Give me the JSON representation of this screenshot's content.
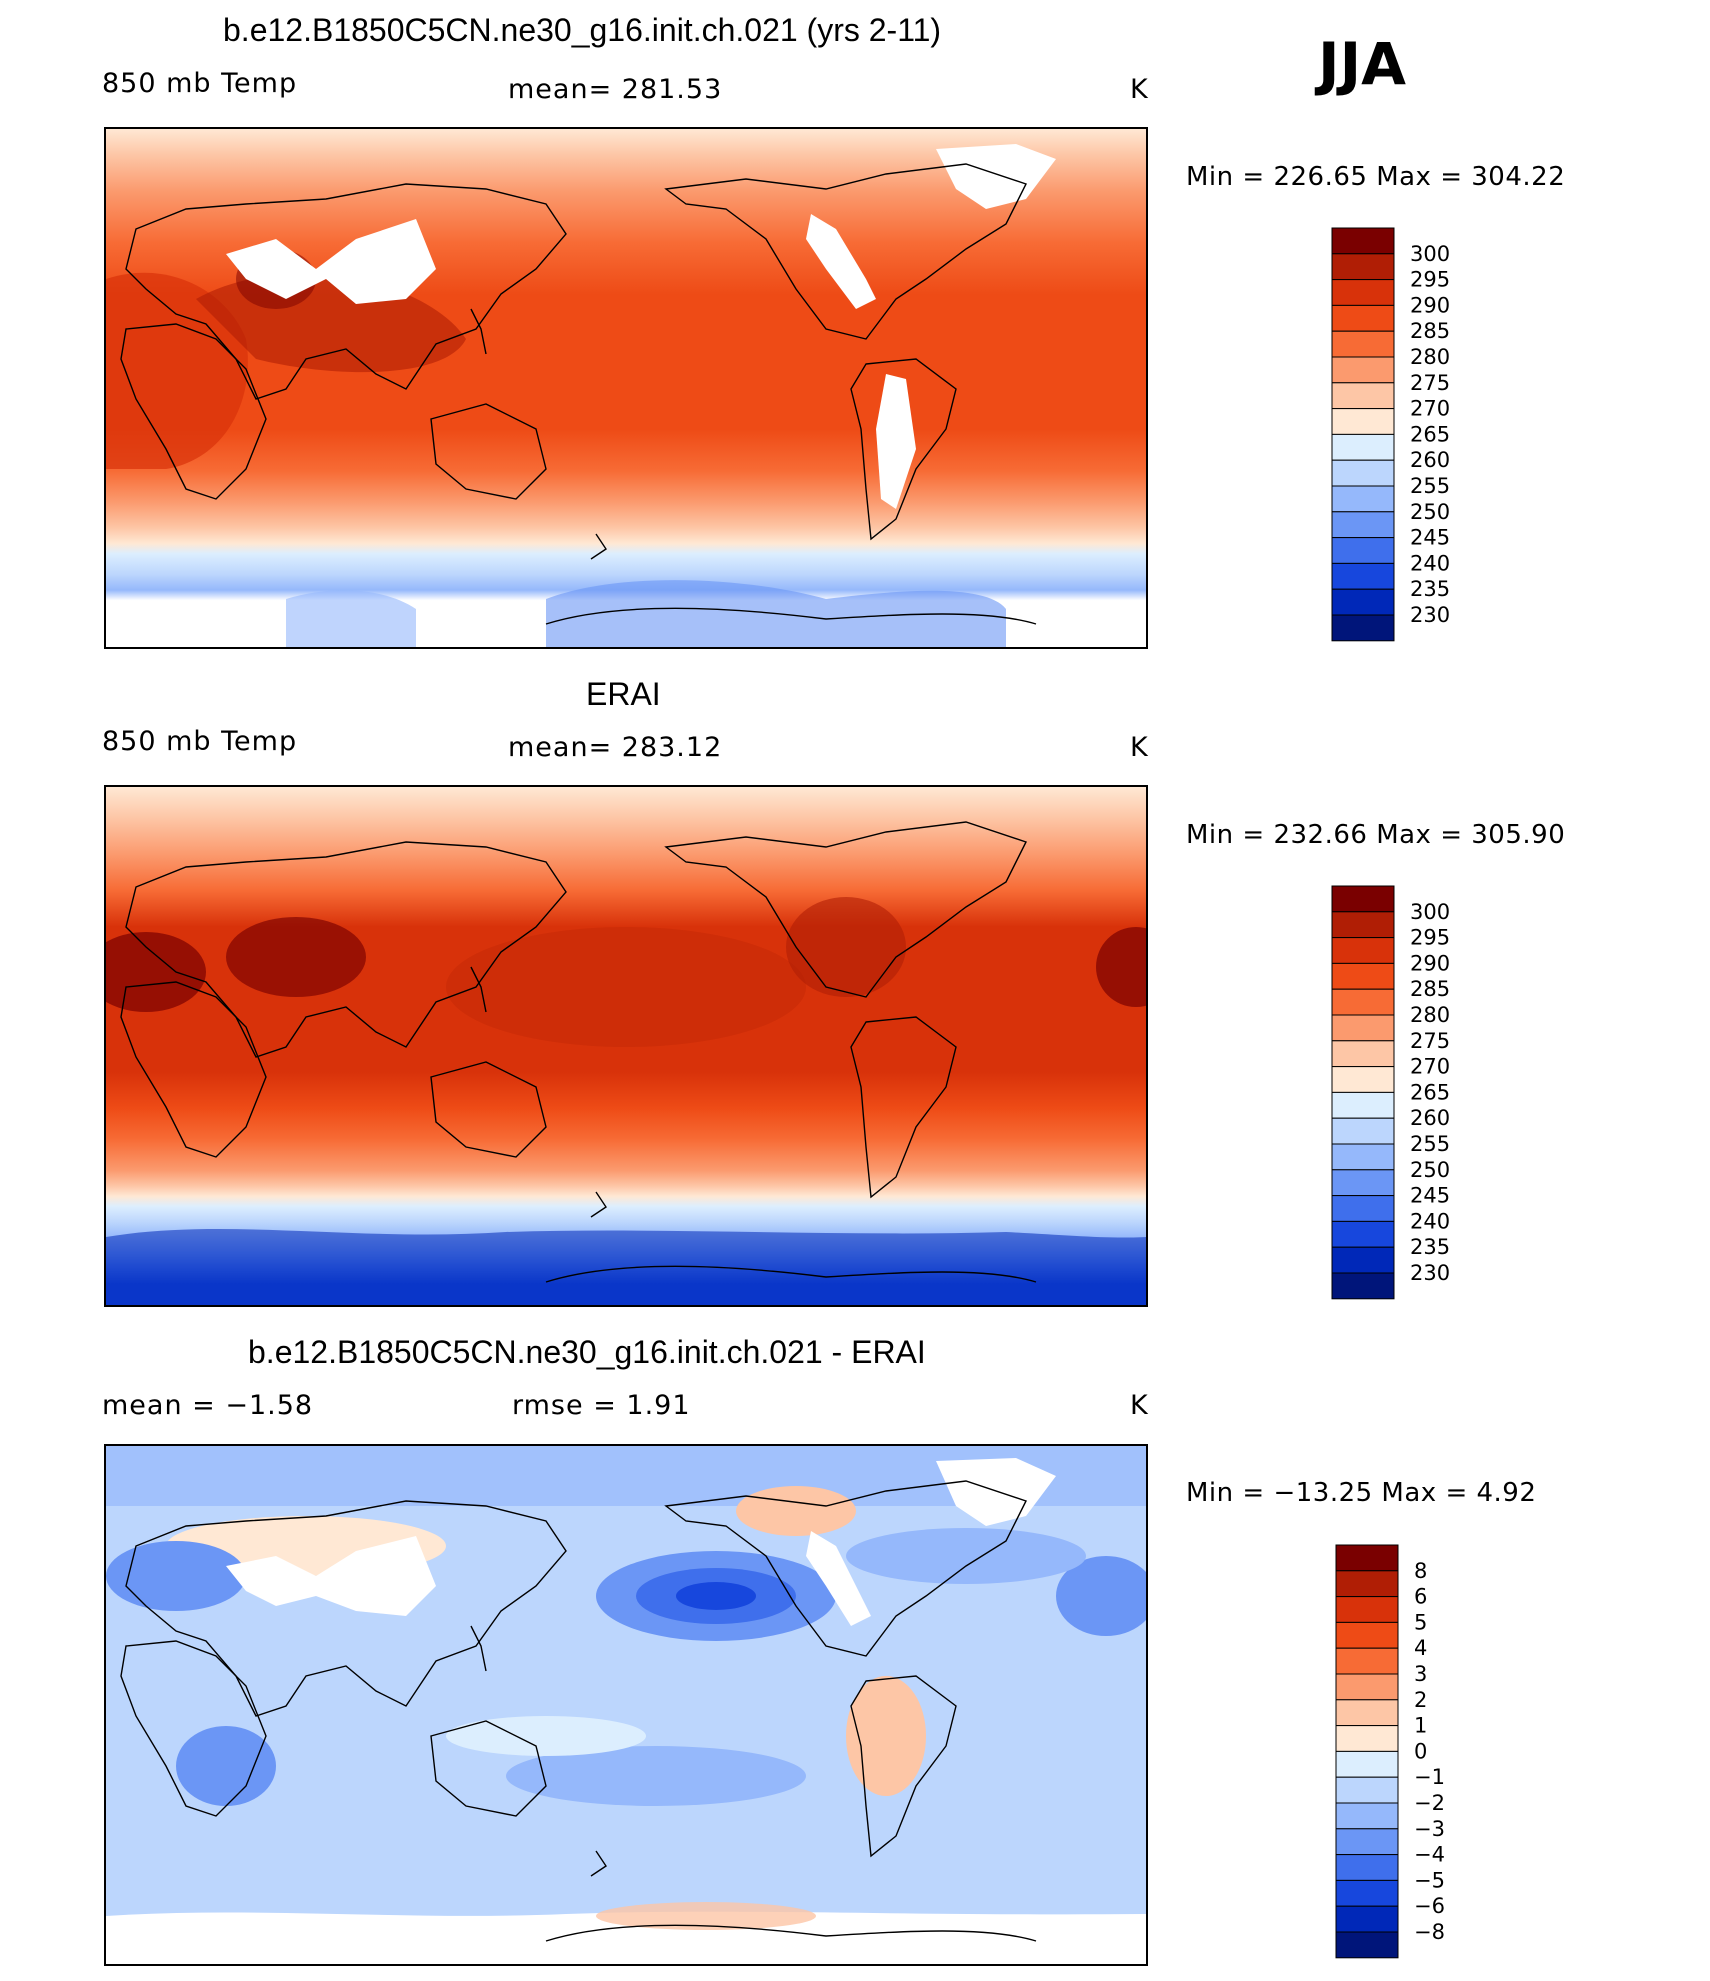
{
  "season": "JJA",
  "panels": [
    {
      "title": "b.e12.B1850C5CN.ne30_g16.init.ch.021 (yrs 2-11)",
      "left_label": "850 mb Temp",
      "center_label": "mean=  281.53",
      "units": "K",
      "minmax": "Min  =  226.65  Max  =  304.22",
      "kind": "abs"
    },
    {
      "title": "ERAI",
      "left_label": "850 mb Temp",
      "center_label": "mean=  283.12",
      "units": "K",
      "minmax": "Min  =  232.66  Max  =  305.90",
      "kind": "abs"
    },
    {
      "title": "b.e12.B1850C5CN.ne30_g16.init.ch.021 - ERAI",
      "left_label": "mean  =     −1.58",
      "center_label": "rmse  =     1.91",
      "units": "K",
      "minmax": "Min  =  −13.25  Max  =     4.92",
      "kind": "diff"
    }
  ],
  "colorbars": {
    "abs": {
      "labels": [
        "300",
        "295",
        "290",
        "285",
        "280",
        "275",
        "270",
        "265",
        "260",
        "255",
        "250",
        "245",
        "240",
        "235",
        "230"
      ],
      "colors": [
        "#7a0000",
        "#b01e05",
        "#d8320a",
        "#ee4b16",
        "#f76b35",
        "#fb9a6e",
        "#fdc6a6",
        "#ffe8d4",
        "#dceefe",
        "#bcd6fd",
        "#95b8fb",
        "#6b96f5",
        "#3f6fec",
        "#1747dd",
        "#0028b8",
        "#00157a"
      ]
    },
    "diff": {
      "labels": [
        "8",
        "6",
        "5",
        "4",
        "3",
        "2",
        "1",
        "0",
        "−1",
        "−2",
        "−3",
        "−4",
        "−5",
        "−6",
        "−8"
      ],
      "colors": [
        "#7a0000",
        "#b01e05",
        "#d8320a",
        "#ee4b16",
        "#f76b35",
        "#fb9a6e",
        "#fdc6a6",
        "#ffe8d4",
        "#dceefe",
        "#bcd6fd",
        "#95b8fb",
        "#6b96f5",
        "#3f6fec",
        "#1747dd",
        "#0028b8",
        "#00157a"
      ]
    }
  }
}
